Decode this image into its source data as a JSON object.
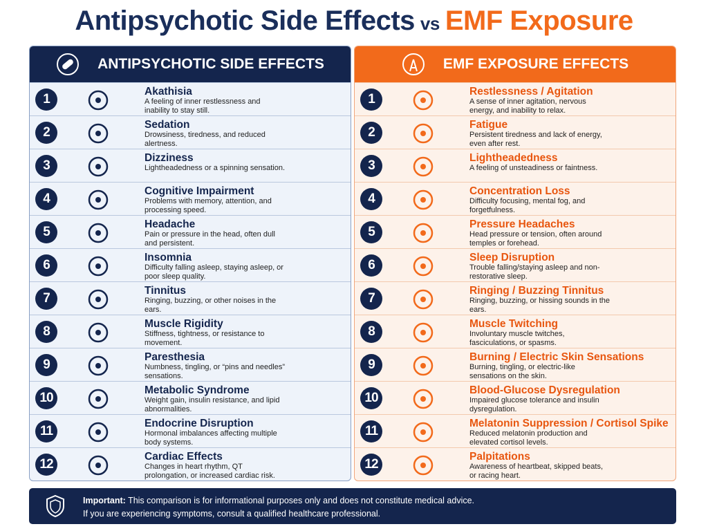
{
  "title": {
    "left": "Antipsychotic Side Effects",
    "vs": "vs",
    "right": "EMF Exposure"
  },
  "panels": [
    {
      "header": "ANTIPSYCHOTIC SIDE EFFECTS",
      "items": [
        {
          "number": 1,
          "title": "Akathisia",
          "desc": "A feeling of inner restlessness and inability to stay still."
        },
        {
          "number": 2,
          "title": "Sedation",
          "desc": "Drowsiness, tiredness, and reduced alertness."
        },
        {
          "number": 3,
          "title": "Dizziness",
          "desc": "Lightheadedness or a spinning sensation."
        },
        {
          "number": 4,
          "title": "Cognitive Impairment",
          "desc": "Problems with memory, attention, and processing speed."
        },
        {
          "number": 5,
          "title": "Headache",
          "desc": "Pain or pressure in the head, often dull and persistent."
        },
        {
          "number": 6,
          "title": "Insomnia",
          "desc": "Difficulty falling asleep, staying asleep, or poor sleep quality."
        },
        {
          "number": 7,
          "title": "Tinnitus",
          "desc": "Ringing, buzzing, or other noises in the ears."
        },
        {
          "number": 8,
          "title": "Muscle Rigidity",
          "desc": "Stiffness, tightness, or resistance to movement."
        },
        {
          "number": 9,
          "title": "Paresthesia",
          "desc": "Numbness, tingling, or “pins and needles” sensations."
        },
        {
          "number": 10,
          "title": "Metabolic Syndrome",
          "desc": "Weight gain, insulin resistance, and lipid abnormalities."
        },
        {
          "number": 11,
          "title": "Endocrine Disruption",
          "desc": "Hormonal imbalances affecting multiple body systems."
        },
        {
          "number": 12,
          "title": "Cardiac Effects",
          "desc": "Changes in heart rhythm, QT prolongation, or increased cardiac risk."
        }
      ]
    },
    {
      "header": "EMF EXPOSURE EFFECTS",
      "items": [
        {
          "number": 1,
          "title": "Restlessness / Agitation",
          "desc": "A sense of inner agitation, nervous energy, and inability to relax."
        },
        {
          "number": 2,
          "title": "Fatigue",
          "desc": "Persistent tiredness and lack of energy, even after rest."
        },
        {
          "number": 3,
          "title": "Lightheadedness",
          "desc": "A feeling of unsteadiness or faintness."
        },
        {
          "number": 4,
          "title": "Concentration Loss",
          "desc": "Difficulty focusing, mental fog, and forgetfulness."
        },
        {
          "number": 5,
          "title": "Pressure Headaches",
          "desc": "Head pressure or tension, often around temples or forehead."
        },
        {
          "number": 6,
          "title": "Sleep Disruption",
          "desc": "Trouble falling/staying asleep and non-restorative sleep."
        },
        {
          "number": 7,
          "title": "Ringing / Buzzing Tinnitus",
          "desc": "Ringing, buzzing, or hissing sounds in the ears."
        },
        {
          "number": 8,
          "title": "Muscle Twitching",
          "desc": "Involuntary muscle twitches, fasciculations, or spasms."
        },
        {
          "number": 9,
          "title": "Burning / Electric Skin Sensations",
          "desc": "Burning, tingling, or electric-like sensations on the skin."
        },
        {
          "number": 10,
          "title": "Blood-Glucose Dysregulation",
          "desc": "Impaired glucose tolerance and insulin dysregulation."
        },
        {
          "number": 11,
          "title": "Melatonin Suppression / Cortisol Spike",
          "desc": "Reduced melatonin production and elevated cortisol levels."
        },
        {
          "number": 12,
          "title": "Palpitations",
          "desc": "Awareness of heartbeat, skipped beats, or racing heart."
        }
      ]
    }
  ],
  "footer": {
    "label": "Important:",
    "line1": "This comparison is for informational purposes only and does not constitute medical advice.",
    "line2": "If you are experiencing symptoms, consult a qualified healthcare professional."
  }
}
